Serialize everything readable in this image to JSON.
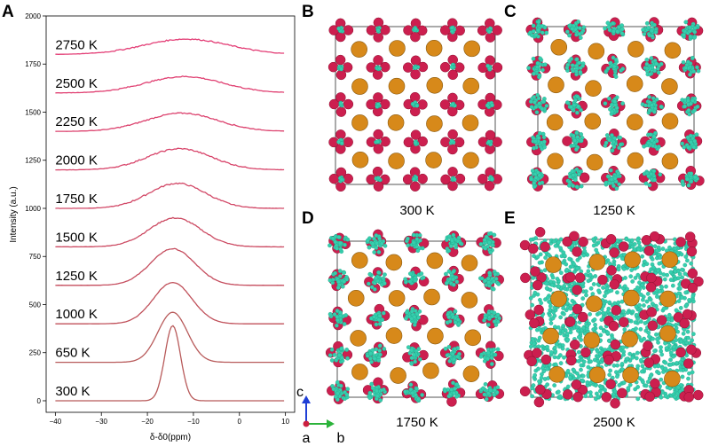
{
  "panels": {
    "A": "A",
    "B": "B",
    "C": "C",
    "D": "D",
    "E": "E"
  },
  "chart_data": {
    "type": "line",
    "xlabel": "δ-δ0(ppm)",
    "ylabel": "Intensity (a.u.)",
    "xlim": [
      -42,
      12
    ],
    "ylim": [
      -60,
      2000
    ],
    "xticks": [
      -40,
      -30,
      -20,
      -10,
      0,
      10
    ],
    "xtick_labels": [
      "−40",
      "−30",
      "−20",
      "−10",
      "0",
      "10"
    ],
    "yticks": [
      0,
      250,
      500,
      750,
      1000,
      1250,
      1500,
      1750,
      2000
    ],
    "grid": false,
    "series": [
      {
        "name": "300 K",
        "baseline": 0,
        "x_peak": -14.5,
        "width": 1.7,
        "height": 390,
        "color": "#b85a5a",
        "noise": 0
      },
      {
        "name": "650 K",
        "baseline": 200,
        "x_peak": -14.5,
        "width": 3.2,
        "height": 260,
        "color": "#b85a5a",
        "noise": 0
      },
      {
        "name": "1000 K",
        "baseline": 400,
        "x_peak": -14.5,
        "width": 4.2,
        "height": 215,
        "color": "#c0505a",
        "noise": 3
      },
      {
        "name": "1250 K",
        "baseline": 600,
        "x_peak": -14.5,
        "width": 4.8,
        "height": 190,
        "color": "#c54d5e",
        "noise": 4
      },
      {
        "name": "1500 K",
        "baseline": 800,
        "x_peak": -14,
        "width": 5.6,
        "height": 150,
        "color": "#cc4a62",
        "noise": 6
      },
      {
        "name": "1750 K",
        "baseline": 1000,
        "x_peak": -13.5,
        "width": 6.2,
        "height": 130,
        "color": "#d24766",
        "noise": 7
      },
      {
        "name": "2000 K",
        "baseline": 1200,
        "x_peak": -13,
        "width": 7.0,
        "height": 110,
        "color": "#d8446a",
        "noise": 7
      },
      {
        "name": "2250 K",
        "baseline": 1400,
        "x_peak": -12.5,
        "width": 7.8,
        "height": 95,
        "color": "#dc426e",
        "noise": 6
      },
      {
        "name": "2500 K",
        "baseline": 1600,
        "x_peak": -12,
        "width": 8.4,
        "height": 85,
        "color": "#e04072",
        "noise": 6
      },
      {
        "name": "2750 K",
        "baseline": 1800,
        "x_peak": -11.5,
        "width": 9.2,
        "height": 80,
        "color": "#e33e76",
        "noise": 6
      }
    ]
  },
  "structures": {
    "atom_colors": {
      "large": "#d7891a",
      "medium": "#cc1f4f",
      "small": "#36cfae"
    },
    "captions": {
      "B": "300 K",
      "C": "1250 K",
      "D": "1750 K",
      "E": "2500 K"
    },
    "axes_indicator": {
      "vertical": "c",
      "origin": "a",
      "horizontal": "b",
      "colors": {
        "c": "#1f3fd6",
        "a": "#cc1f3f",
        "b": "#2bb33a"
      }
    }
  }
}
